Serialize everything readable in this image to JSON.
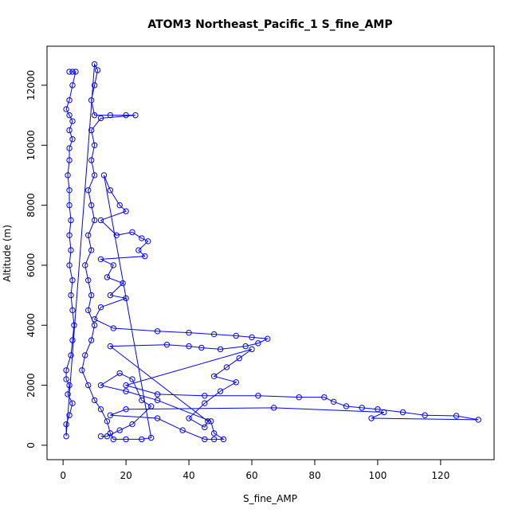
{
  "chart_data": {
    "type": "line",
    "title": "ATOM3 Northeast_Pacific_1 S_fine_AMP",
    "x_label": "S_fine_AMP",
    "y_label": "Altitude (m)",
    "color": "#0000ff",
    "x": [
      2,
      3,
      4,
      3,
      2,
      1,
      2,
      3,
      2,
      3,
      2,
      2,
      1.5,
      2,
      2,
      2.5,
      2,
      2.5,
      2,
      3,
      2.5,
      3,
      3.5,
      3,
      2.5,
      1,
      1,
      2,
      1.5,
      3,
      2,
      1,
      1,
      10,
      11,
      10,
      9,
      10,
      15,
      20,
      23,
      12,
      9,
      10,
      9,
      10,
      8,
      9,
      10,
      8,
      9,
      7,
      8,
      9,
      8,
      10,
      9,
      7,
      6,
      8,
      10,
      12,
      14,
      15,
      16,
      20,
      25,
      28,
      13,
      15,
      18,
      20,
      12,
      17,
      22,
      25,
      27,
      24,
      26,
      12,
      16,
      14,
      19,
      15,
      20,
      12,
      10,
      16,
      30,
      40,
      48,
      55,
      60,
      65,
      62,
      58,
      50,
      44,
      40,
      33,
      15,
      46,
      45,
      40,
      45,
      50,
      55,
      48,
      52,
      56,
      60,
      20,
      30,
      45,
      62,
      75,
      83,
      86,
      90,
      95,
      100,
      108,
      115,
      125,
      132,
      98,
      102,
      67,
      20,
      15,
      30,
      38,
      45,
      48,
      51,
      48,
      47,
      30,
      20,
      12,
      18,
      22,
      25,
      28,
      22,
      18,
      14,
      12
    ],
    "values": [
      12450,
      12450,
      12450,
      12000,
      11500,
      11200,
      11000,
      10800,
      10500,
      10200,
      9900,
      9500,
      9000,
      8500,
      8000,
      7500,
      7000,
      6500,
      6000,
      5500,
      5000,
      4500,
      4000,
      3500,
      3000,
      2500,
      2200,
      2000,
      1700,
      1400,
      1000,
      700,
      300,
      12700,
      12500,
      12000,
      11500,
      11000,
      11000,
      11000,
      11000,
      10900,
      10500,
      10000,
      9500,
      9000,
      8500,
      8000,
      7500,
      7000,
      6500,
      6000,
      5500,
      5000,
      4500,
      4000,
      3500,
      3000,
      2500,
      2000,
      1500,
      1200,
      800,
      400,
      200,
      200,
      200,
      250,
      9000,
      8500,
      8000,
      7800,
      7500,
      7000,
      7100,
      6900,
      6800,
      6500,
      6300,
      6200,
      6000,
      5600,
      5400,
      5000,
      4900,
      4600,
      4200,
      3900,
      3800,
      3750,
      3700,
      3650,
      3600,
      3550,
      3400,
      3300,
      3200,
      3250,
      3300,
      3350,
      3300,
      800,
      600,
      900,
      1400,
      1800,
      2100,
      2300,
      2600,
      2900,
      3200,
      2000,
      1700,
      1650,
      1650,
      1600,
      1600,
      1450,
      1300,
      1250,
      1200,
      1100,
      1000,
      980,
      850,
      900,
      1100,
      1250,
      1200,
      1000,
      900,
      500,
      200,
      200,
      200,
      400,
      800,
      1500,
      1800,
      2000,
      2400,
      2200,
      1500,
      1300,
      700,
      500,
      300,
      300
    ],
    "xlim": [
      -5.1,
      137
    ],
    "ylim": [
      -480,
      13300
    ],
    "xticks": [
      0,
      20,
      40,
      60,
      80,
      100,
      120
    ],
    "yticks": [
      0,
      2000,
      4000,
      6000,
      8000,
      10000,
      12000
    ]
  }
}
